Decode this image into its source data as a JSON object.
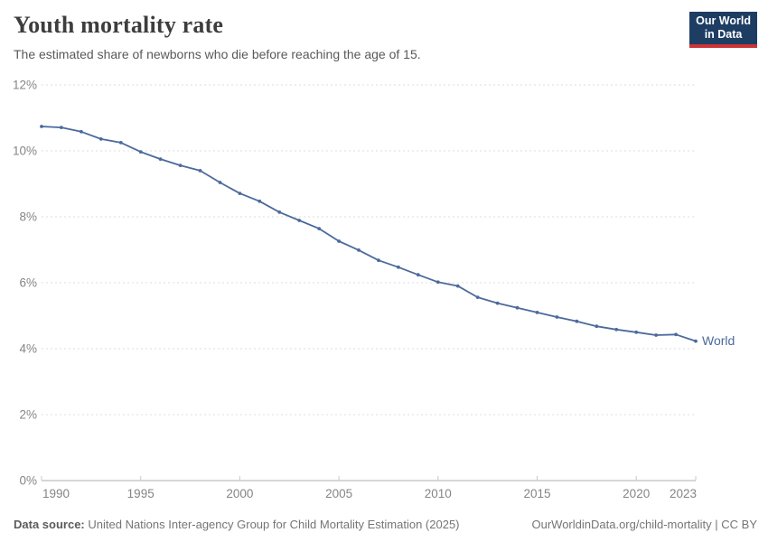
{
  "header": {
    "title": "Youth mortality rate",
    "subtitle": "The estimated share of newborns who die before reaching the age of 15.",
    "logo": {
      "line1": "Our World",
      "line2": "in Data",
      "background_color": "#1d3d63",
      "accent_color": "#cb3437"
    }
  },
  "chart_data": {
    "type": "line",
    "title": "Youth mortality rate",
    "subtitle": "The estimated share of newborns who die before reaching the age of 15.",
    "x": [
      1990,
      1991,
      1992,
      1993,
      1994,
      1995,
      1996,
      1997,
      1998,
      1999,
      2000,
      2001,
      2002,
      2003,
      2004,
      2005,
      2006,
      2007,
      2008,
      2009,
      2010,
      2011,
      2012,
      2013,
      2014,
      2015,
      2016,
      2017,
      2018,
      2019,
      2020,
      2021,
      2022,
      2023
    ],
    "series": [
      {
        "name": "World",
        "color": "#4c6a9c",
        "values": [
          10.74,
          10.71,
          10.58,
          10.36,
          10.25,
          9.97,
          9.75,
          9.56,
          9.4,
          9.04,
          8.71,
          8.47,
          8.14,
          7.89,
          7.64,
          7.26,
          6.99,
          6.68,
          6.47,
          6.24,
          6.02,
          5.9,
          5.56,
          5.38,
          5.24,
          5.1,
          4.96,
          4.83,
          4.68,
          4.58,
          4.5,
          4.41,
          4.43,
          4.23
        ]
      }
    ],
    "xlabel": "",
    "ylabel": "",
    "xlim": [
      1990,
      2023
    ],
    "ylim": [
      0,
      12
    ],
    "xticks": [
      1990,
      1995,
      2000,
      2005,
      2010,
      2015,
      2020,
      2023
    ],
    "yticks": [
      0,
      2,
      4,
      6,
      8,
      10,
      12
    ],
    "ytick_suffix": "%",
    "grid": "horizontal-dashed",
    "legend_position": "line-end-label",
    "colors": {
      "grid": "#dcdcdc",
      "axis": "#afafaf",
      "tick": "#c8c8c8",
      "tick_text": "#858585"
    }
  },
  "footer": {
    "source_label": "Data source:",
    "source": "United Nations Inter-agency Group for Child Mortality Estimation (2025)",
    "attribution": "OurWorldinData.org/child-mortality | CC BY"
  }
}
